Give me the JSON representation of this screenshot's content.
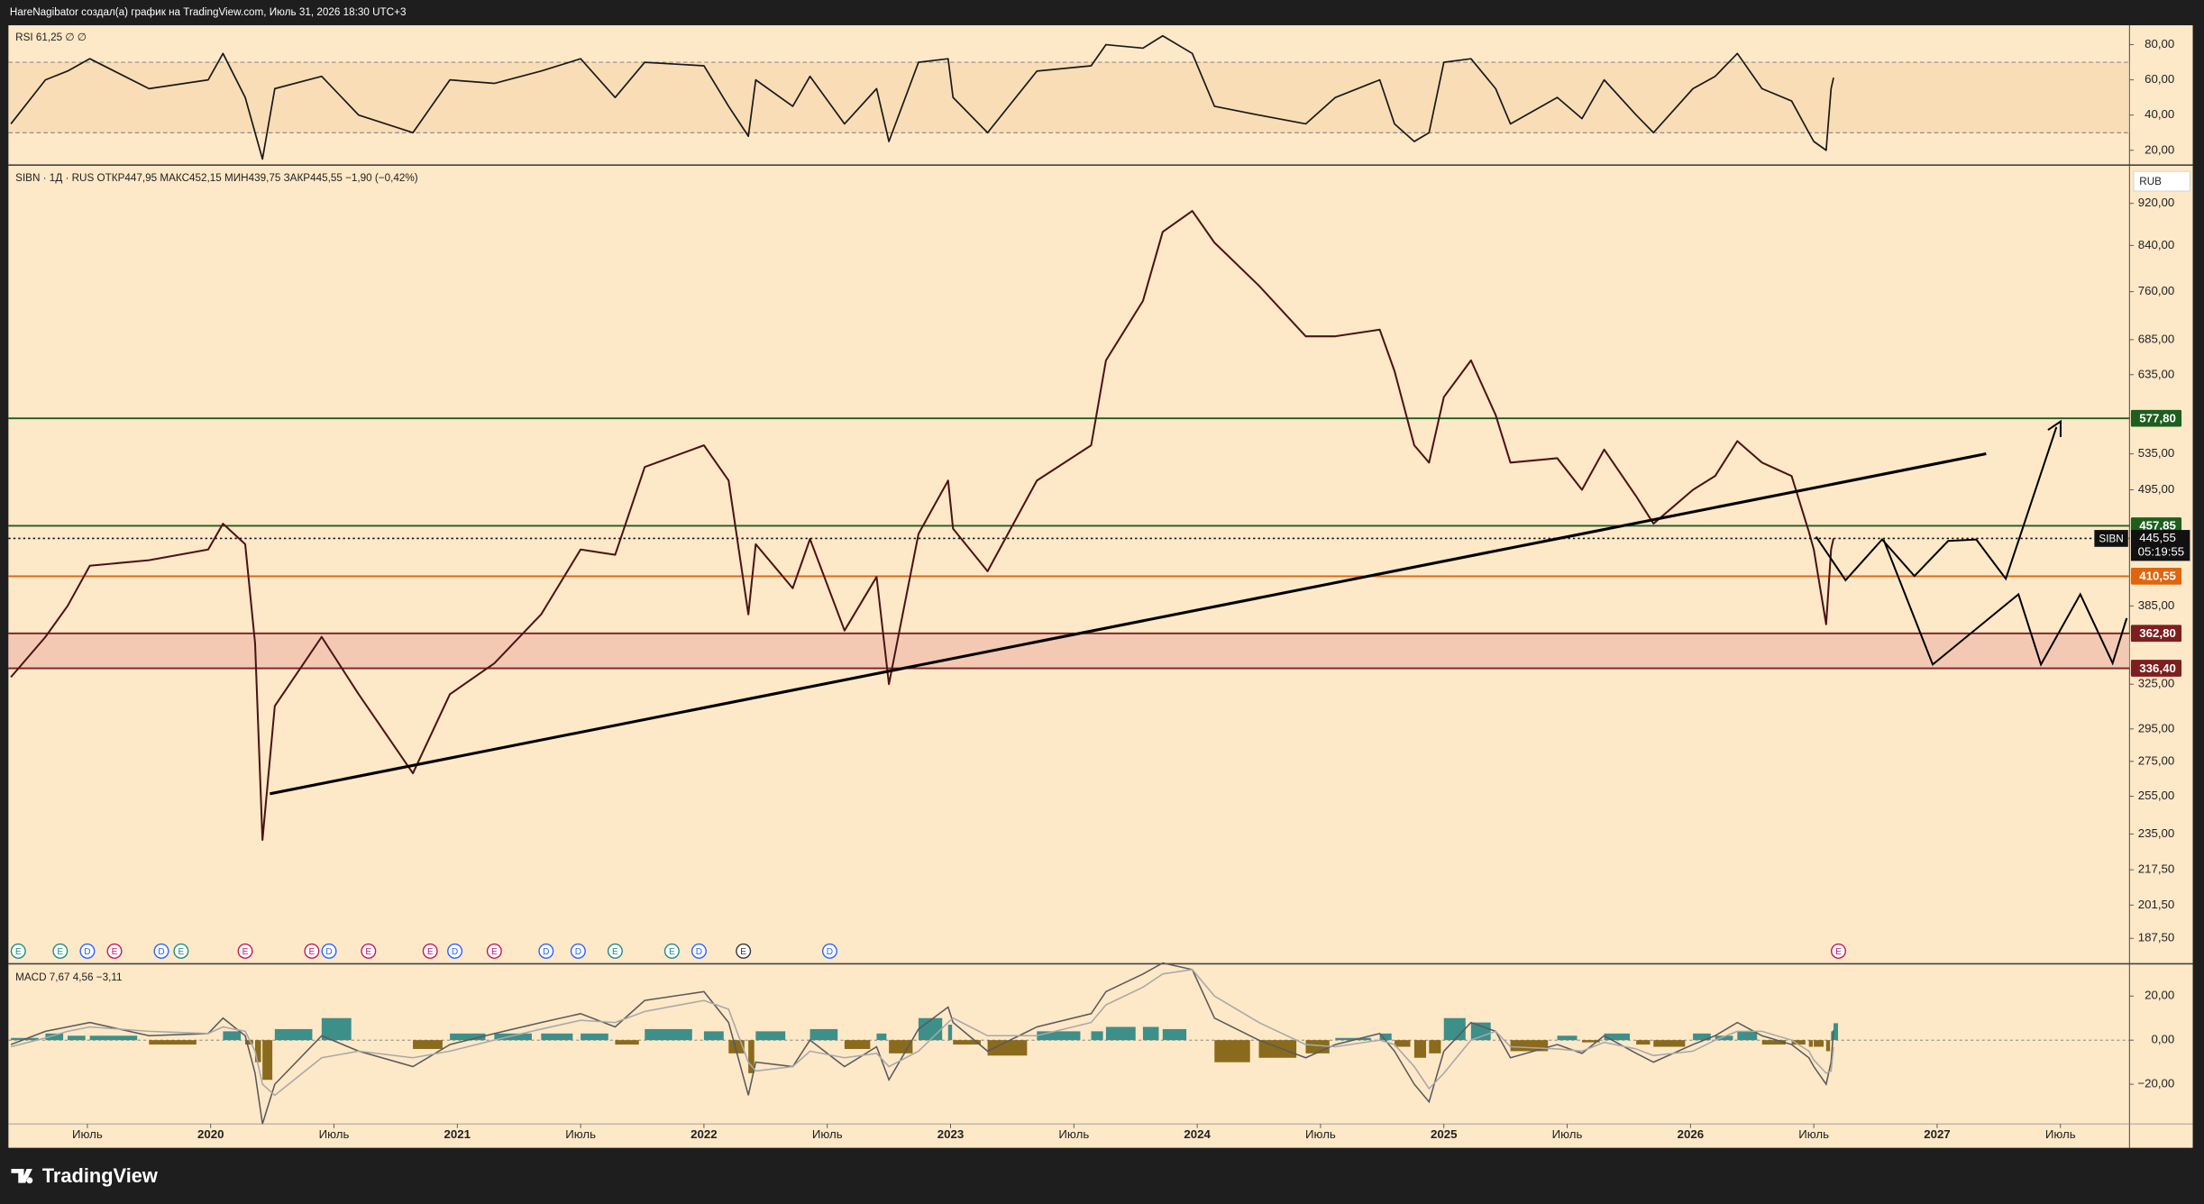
{
  "header": "HareNagibator создал(а) график на TradingView.com, Июль 31, 2026 18:30 UTC+3",
  "brand": "TradingView",
  "chart_data": [
    {
      "type": "line",
      "legend": "RSI 61,25 ∅ ∅",
      "color": "#1a1a1a",
      "band": [
        30,
        70
      ],
      "ylim": [
        12,
        91
      ],
      "yticks": [
        {
          "value": 80,
          "label": "80,00"
        },
        {
          "value": 60,
          "label": "60,00"
        },
        {
          "value": 40,
          "label": "40,00"
        },
        {
          "value": 20,
          "label": "20,00"
        }
      ],
      "x": [
        2019.19,
        2019.33,
        2019.42,
        2019.51,
        2019.75,
        2019.99,
        2020.05,
        2020.14,
        2020.18,
        2020.21,
        2020.26,
        2020.45,
        2020.6,
        2020.82,
        2020.97,
        2021.15,
        2021.34,
        2021.5,
        2021.64,
        2021.76,
        2022.0,
        2022.1,
        2022.18,
        2022.21,
        2022.36,
        2022.43,
        2022.57,
        2022.7,
        2022.75,
        2022.87,
        2022.99,
        2023.01,
        2023.15,
        2023.35,
        2023.57,
        2023.63,
        2023.78,
        2023.86,
        2023.98,
        2024.07,
        2024.25,
        2024.44,
        2024.56,
        2024.74,
        2024.8,
        2024.88,
        2024.94,
        2025.0,
        2025.11,
        2025.21,
        2025.27,
        2025.46,
        2025.56,
        2025.65,
        2025.78,
        2025.85,
        2026.01,
        2026.1,
        2026.19,
        2026.29,
        2026.41,
        2026.48,
        2026.5,
        2026.55,
        2026.57,
        2026.58
      ],
      "values": [
        35,
        60,
        65,
        72,
        55,
        60,
        75,
        50,
        30,
        15,
        55,
        62,
        40,
        30,
        60,
        58,
        65,
        72,
        50,
        70,
        68,
        45,
        28,
        60,
        45,
        62,
        35,
        55,
        25,
        70,
        72,
        50,
        30,
        65,
        68,
        80,
        78,
        85,
        75,
        45,
        40,
        35,
        50,
        60,
        35,
        25,
        30,
        70,
        72,
        55,
        35,
        50,
        38,
        60,
        40,
        30,
        55,
        62,
        75,
        55,
        48,
        30,
        25,
        20,
        55,
        61.25
      ]
    },
    {
      "type": "line",
      "legend": "SIBN · 1Д · RUS ОТКР447,95 МАКС452,15 МИН439,75 ЗАКР445,55 −1,90 (−0,42%)",
      "currency": "RUB",
      "color": "#4a1414",
      "log_scale": true,
      "ylim": [
        178,
        998
      ],
      "yticks": [
        {
          "value": 920,
          "label": "920,00"
        },
        {
          "value": 840,
          "label": "840,00"
        },
        {
          "value": 760,
          "label": "760,00"
        },
        {
          "value": 685,
          "label": "685,00"
        },
        {
          "value": 635,
          "label": "635,00"
        },
        {
          "value": 535,
          "label": "535,00"
        },
        {
          "value": 495,
          "label": "495,00"
        },
        {
          "value": 385,
          "label": "385,00"
        },
        {
          "value": 325,
          "label": "325,00"
        },
        {
          "value": 295,
          "label": "295,00"
        },
        {
          "value": 275,
          "label": "275,00"
        },
        {
          "value": 255,
          "label": "255,00"
        },
        {
          "value": 235,
          "label": "235,00"
        },
        {
          "value": 217.5,
          "label": "217,50"
        },
        {
          "value": 201.5,
          "label": "201,50"
        },
        {
          "value": 187.5,
          "label": "187,50"
        }
      ],
      "xlim": [
        2019.18,
        2027.78
      ],
      "xticks": [
        {
          "value": 2019.5,
          "label": "Июль"
        },
        2020,
        {
          "value": 2020.5,
          "label": "Июль"
        },
        2021,
        {
          "value": 2021.5,
          "label": "Июль"
        },
        2022,
        {
          "value": 2022.5,
          "label": "Июль"
        },
        2023,
        {
          "value": 2023.5,
          "label": "Июль"
        },
        2024,
        {
          "value": 2024.5,
          "label": "Июль"
        },
        2025,
        {
          "value": 2025.5,
          "label": "Июль"
        },
        2026,
        {
          "value": 2026.5,
          "label": "Июль"
        },
        2027,
        {
          "value": 2027.5,
          "label": "Июль"
        }
      ],
      "x": [
        2019.19,
        2019.33,
        2019.42,
        2019.51,
        2019.75,
        2019.99,
        2020.05,
        2020.14,
        2020.18,
        2020.21,
        2020.26,
        2020.45,
        2020.6,
        2020.82,
        2020.97,
        2021.15,
        2021.34,
        2021.5,
        2021.64,
        2021.76,
        2022.0,
        2022.1,
        2022.18,
        2022.21,
        2022.36,
        2022.43,
        2022.57,
        2022.7,
        2022.75,
        2022.87,
        2022.99,
        2023.01,
        2023.15,
        2023.35,
        2023.57,
        2023.63,
        2023.78,
        2023.86,
        2023.98,
        2024.07,
        2024.25,
        2024.44,
        2024.56,
        2024.74,
        2024.8,
        2024.88,
        2024.94,
        2025.0,
        2025.11,
        2025.21,
        2025.27,
        2025.46,
        2025.56,
        2025.65,
        2025.78,
        2025.85,
        2026.01,
        2026.1,
        2026.19,
        2026.29,
        2026.41,
        2026.48,
        2026.5,
        2026.55,
        2026.57,
        2026.58
      ],
      "values": [
        330,
        360,
        385,
        420,
        425,
        435,
        460,
        440,
        355,
        232,
        310,
        360,
        318,
        268,
        318,
        340,
        378,
        435,
        430,
        520,
        545,
        505,
        378,
        440,
        400,
        445,
        365,
        410,
        325,
        450,
        505,
        455,
        415,
        505,
        545,
        655,
        745,
        865,
        905,
        845,
        770,
        690,
        690,
        700,
        640,
        545,
        525,
        605,
        655,
        582,
        525,
        530,
        495,
        540,
        488,
        460,
        495,
        510,
        550,
        525,
        510,
        452,
        435,
        370,
        435,
        445.55
      ],
      "levels": [
        {
          "value": 577.8,
          "label": "577,80",
          "color": "#1e5e1e"
        },
        {
          "value": 457.85,
          "label": "457,85",
          "color": "#1e5e1e"
        },
        {
          "value": 410.55,
          "label": "410,55",
          "color": "#e0650d"
        },
        {
          "value": 362.8,
          "label": "362,80",
          "color": "#7b1f1f",
          "fill": "#eebcab"
        },
        {
          "value": 336.4,
          "label": "336,40",
          "color": "#7b1f1f"
        }
      ],
      "last_price": {
        "value": 445.55,
        "label": "445,55",
        "countdown": "05:19:55",
        "symbol": "SIBN"
      },
      "events": [
        {
          "x": 2019.22,
          "label": "E",
          "color": "#1c8c84"
        },
        {
          "x": 2019.39,
          "label": "E",
          "color": "#1c8c84"
        },
        {
          "x": 2019.5,
          "label": "D",
          "color": "#2962ff"
        },
        {
          "x": 2019.61,
          "label": "E",
          "color": "#c2185b"
        },
        {
          "x": 2019.8,
          "label": "D",
          "color": "#2962ff"
        },
        {
          "x": 2019.88,
          "label": "E",
          "color": "#1c8c84"
        },
        {
          "x": 2020.14,
          "label": "E",
          "color": "#c2185b"
        },
        {
          "x": 2020.41,
          "label": "E",
          "color": "#c2185b"
        },
        {
          "x": 2020.48,
          "label": "D",
          "color": "#2962ff"
        },
        {
          "x": 2020.64,
          "label": "E",
          "color": "#c2185b"
        },
        {
          "x": 2020.89,
          "label": "E",
          "color": "#c2185b"
        },
        {
          "x": 2020.99,
          "label": "D",
          "color": "#2962ff"
        },
        {
          "x": 2021.15,
          "label": "E",
          "color": "#c2185b"
        },
        {
          "x": 2021.36,
          "label": "D",
          "color": "#2962ff"
        },
        {
          "x": 2021.49,
          "label": "D",
          "color": "#2962ff"
        },
        {
          "x": 2021.64,
          "label": "E",
          "color": "#1c8c84"
        },
        {
          "x": 2021.87,
          "label": "E",
          "color": "#1c8c84"
        },
        {
          "x": 2021.98,
          "label": "D",
          "color": "#2962ff"
        },
        {
          "x": 2022.16,
          "label": "E",
          "color": "#333333"
        },
        {
          "x": 2022.51,
          "label": "D",
          "color": "#2962ff"
        },
        {
          "x": 2026.6,
          "label": "E",
          "color": "#c2185b"
        }
      ]
    },
    {
      "type": "line",
      "legend": "MACD 7,67 4,56 −3,11",
      "ylim": [
        -38,
        34
      ],
      "yticks": [
        {
          "value": 20,
          "label": "20,00"
        },
        {
          "value": 0,
          "label": "0,00"
        },
        {
          "value": -20,
          "label": "−20,00"
        }
      ],
      "x": [
        2019.19,
        2019.33,
        2019.42,
        2019.51,
        2019.75,
        2019.99,
        2020.05,
        2020.14,
        2020.18,
        2020.21,
        2020.26,
        2020.45,
        2020.6,
        2020.82,
        2020.97,
        2021.15,
        2021.34,
        2021.5,
        2021.64,
        2021.76,
        2022.0,
        2022.1,
        2022.18,
        2022.21,
        2022.36,
        2022.43,
        2022.57,
        2022.7,
        2022.75,
        2022.87,
        2022.99,
        2023.01,
        2023.15,
        2023.35,
        2023.57,
        2023.63,
        2023.78,
        2023.86,
        2023.98,
        2024.07,
        2024.25,
        2024.44,
        2024.56,
        2024.74,
        2024.8,
        2024.88,
        2024.94,
        2025.0,
        2025.11,
        2025.21,
        2025.27,
        2025.46,
        2025.56,
        2025.65,
        2025.78,
        2025.85,
        2026.01,
        2026.1,
        2026.19,
        2026.29,
        2026.41,
        2026.48,
        2026.5,
        2026.55,
        2026.57,
        2026.58
      ],
      "series": [
        {
          "type": "bar",
          "color": "#3d8f8a",
          "negative_color": "#8a6a1c",
          "values": [
            1,
            3,
            2,
            2,
            -2,
            0,
            4,
            -2,
            -10,
            -18,
            5,
            10,
            0,
            -4,
            3,
            3,
            3,
            3,
            -2,
            5,
            4,
            -6,
            -15,
            4,
            0,
            5,
            -4,
            3,
            -6,
            10,
            7,
            -2,
            -7,
            4,
            4,
            6,
            6,
            5,
            0,
            -10,
            -8,
            -6,
            1,
            3,
            -3,
            -8,
            -6,
            10,
            8,
            0,
            -5,
            2,
            -1,
            3,
            -2,
            -3,
            3,
            2,
            4,
            -2,
            -2,
            -3,
            -3,
            -5,
            4,
            7.67
          ]
        },
        {
          "type": "line",
          "color": "#5a5a5a",
          "values": [
            -2,
            4,
            6,
            8,
            2,
            3,
            10,
            2,
            -15,
            -38,
            -20,
            2,
            -5,
            -12,
            -2,
            3,
            8,
            12,
            6,
            18,
            22,
            8,
            -25,
            -10,
            -12,
            0,
            -12,
            -3,
            -18,
            5,
            15,
            8,
            -5,
            6,
            12,
            22,
            30,
            35,
            32,
            10,
            0,
            -8,
            -2,
            3,
            -5,
            -20,
            -28,
            -5,
            8,
            4,
            -8,
            -2,
            -6,
            2,
            -6,
            -10,
            -2,
            2,
            8,
            2,
            -2,
            -8,
            -12,
            -20,
            -10,
            4.56
          ]
        },
        {
          "type": "line",
          "color": "#a8a8a8",
          "values": [
            -3,
            1,
            4,
            6,
            4,
            3,
            6,
            4,
            -5,
            -20,
            -25,
            -8,
            -5,
            -8,
            -5,
            0,
            5,
            9,
            8,
            13,
            18,
            14,
            -10,
            -14,
            -12,
            -5,
            -8,
            -6,
            -12,
            -5,
            8,
            10,
            2,
            2,
            8,
            16,
            24,
            30,
            32,
            20,
            8,
            -2,
            -3,
            0,
            -2,
            -12,
            -22,
            -15,
            0,
            4,
            -3,
            -4,
            -5,
            -1,
            -4,
            -7,
            -5,
            0,
            4,
            4,
            0,
            -5,
            -9,
            -15,
            -14,
            -3.11
          ]
        }
      ]
    }
  ]
}
